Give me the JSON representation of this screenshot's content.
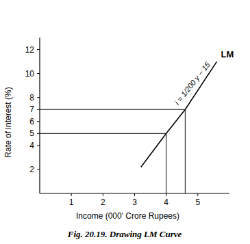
{
  "chart_data": {
    "type": "line",
    "title": "Fig. 20.19. Drawing LM Curve",
    "x_label": "Income (000' Crore Rupees)",
    "y_label": "Rate of interest  (%)",
    "annotations": [
      "i = 1/200 y − 15"
    ],
    "x": [
      3.2,
      4,
      4.6,
      5.6
    ],
    "series": [
      {
        "name": "LM",
        "color": "#000000",
        "values": [
          2.2,
          5,
          7,
          11
        ]
      }
    ],
    "guides": {
      "x": [
        4,
        4.6
      ],
      "y": [
        5,
        7
      ]
    },
    "xlim": [
      0,
      6
    ],
    "xticks": [
      1,
      2,
      3,
      4,
      5
    ],
    "ylim": [
      0,
      13
    ],
    "yticks": [
      2,
      4,
      5,
      6,
      7,
      8,
      10,
      12
    ],
    "grid": false
  }
}
